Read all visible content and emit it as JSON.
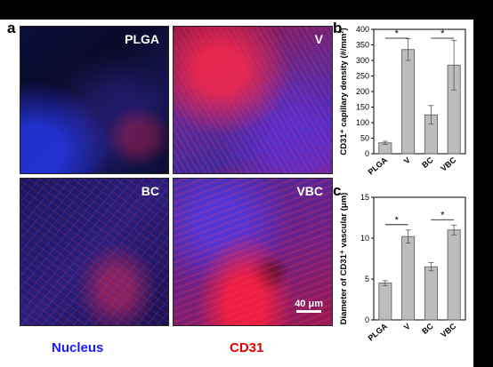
{
  "panels": {
    "a_letter": "a",
    "b_letter": "b",
    "c_letter": "c"
  },
  "images": [
    {
      "label": "PLGA"
    },
    {
      "label": "V"
    },
    {
      "label": "BC"
    },
    {
      "label": "VBC"
    }
  ],
  "scale_bar": "40 μm",
  "stain_legend": {
    "nucleus": "Nucleus",
    "nucleus_color": "#1a1aff",
    "cd31": "CD31",
    "cd31_color": "#e00000"
  },
  "chart_data": [
    {
      "type": "bar",
      "ylabel": "CD31⁺ capillary density (#/mm²)",
      "categories": [
        "PLGA",
        "V",
        "BC",
        "VBC"
      ],
      "values": [
        35,
        335,
        125,
        285
      ],
      "errors": [
        5,
        35,
        30,
        80
      ],
      "ylim": [
        0,
        400
      ],
      "yticks": [
        0,
        50,
        100,
        150,
        200,
        250,
        300,
        350,
        400
      ],
      "significance": [
        [
          "PLGA",
          "V"
        ],
        [
          "BC",
          "VBC"
        ]
      ],
      "bar_color": "#bdbdbd"
    },
    {
      "type": "bar",
      "ylabel": "Diameter of CD31⁺ vascular (μm)",
      "categories": [
        "PLGA",
        "V",
        "BC",
        "VBC"
      ],
      "values": [
        4.5,
        10.2,
        6.5,
        11.0
      ],
      "errors": [
        0.3,
        0.8,
        0.5,
        0.6
      ],
      "ylim": [
        0,
        15
      ],
      "yticks": [
        0,
        5,
        10,
        15
      ],
      "significance": [
        [
          "PLGA",
          "V"
        ],
        [
          "BC",
          "VBC"
        ]
      ],
      "bar_color": "#bdbdbd"
    }
  ]
}
